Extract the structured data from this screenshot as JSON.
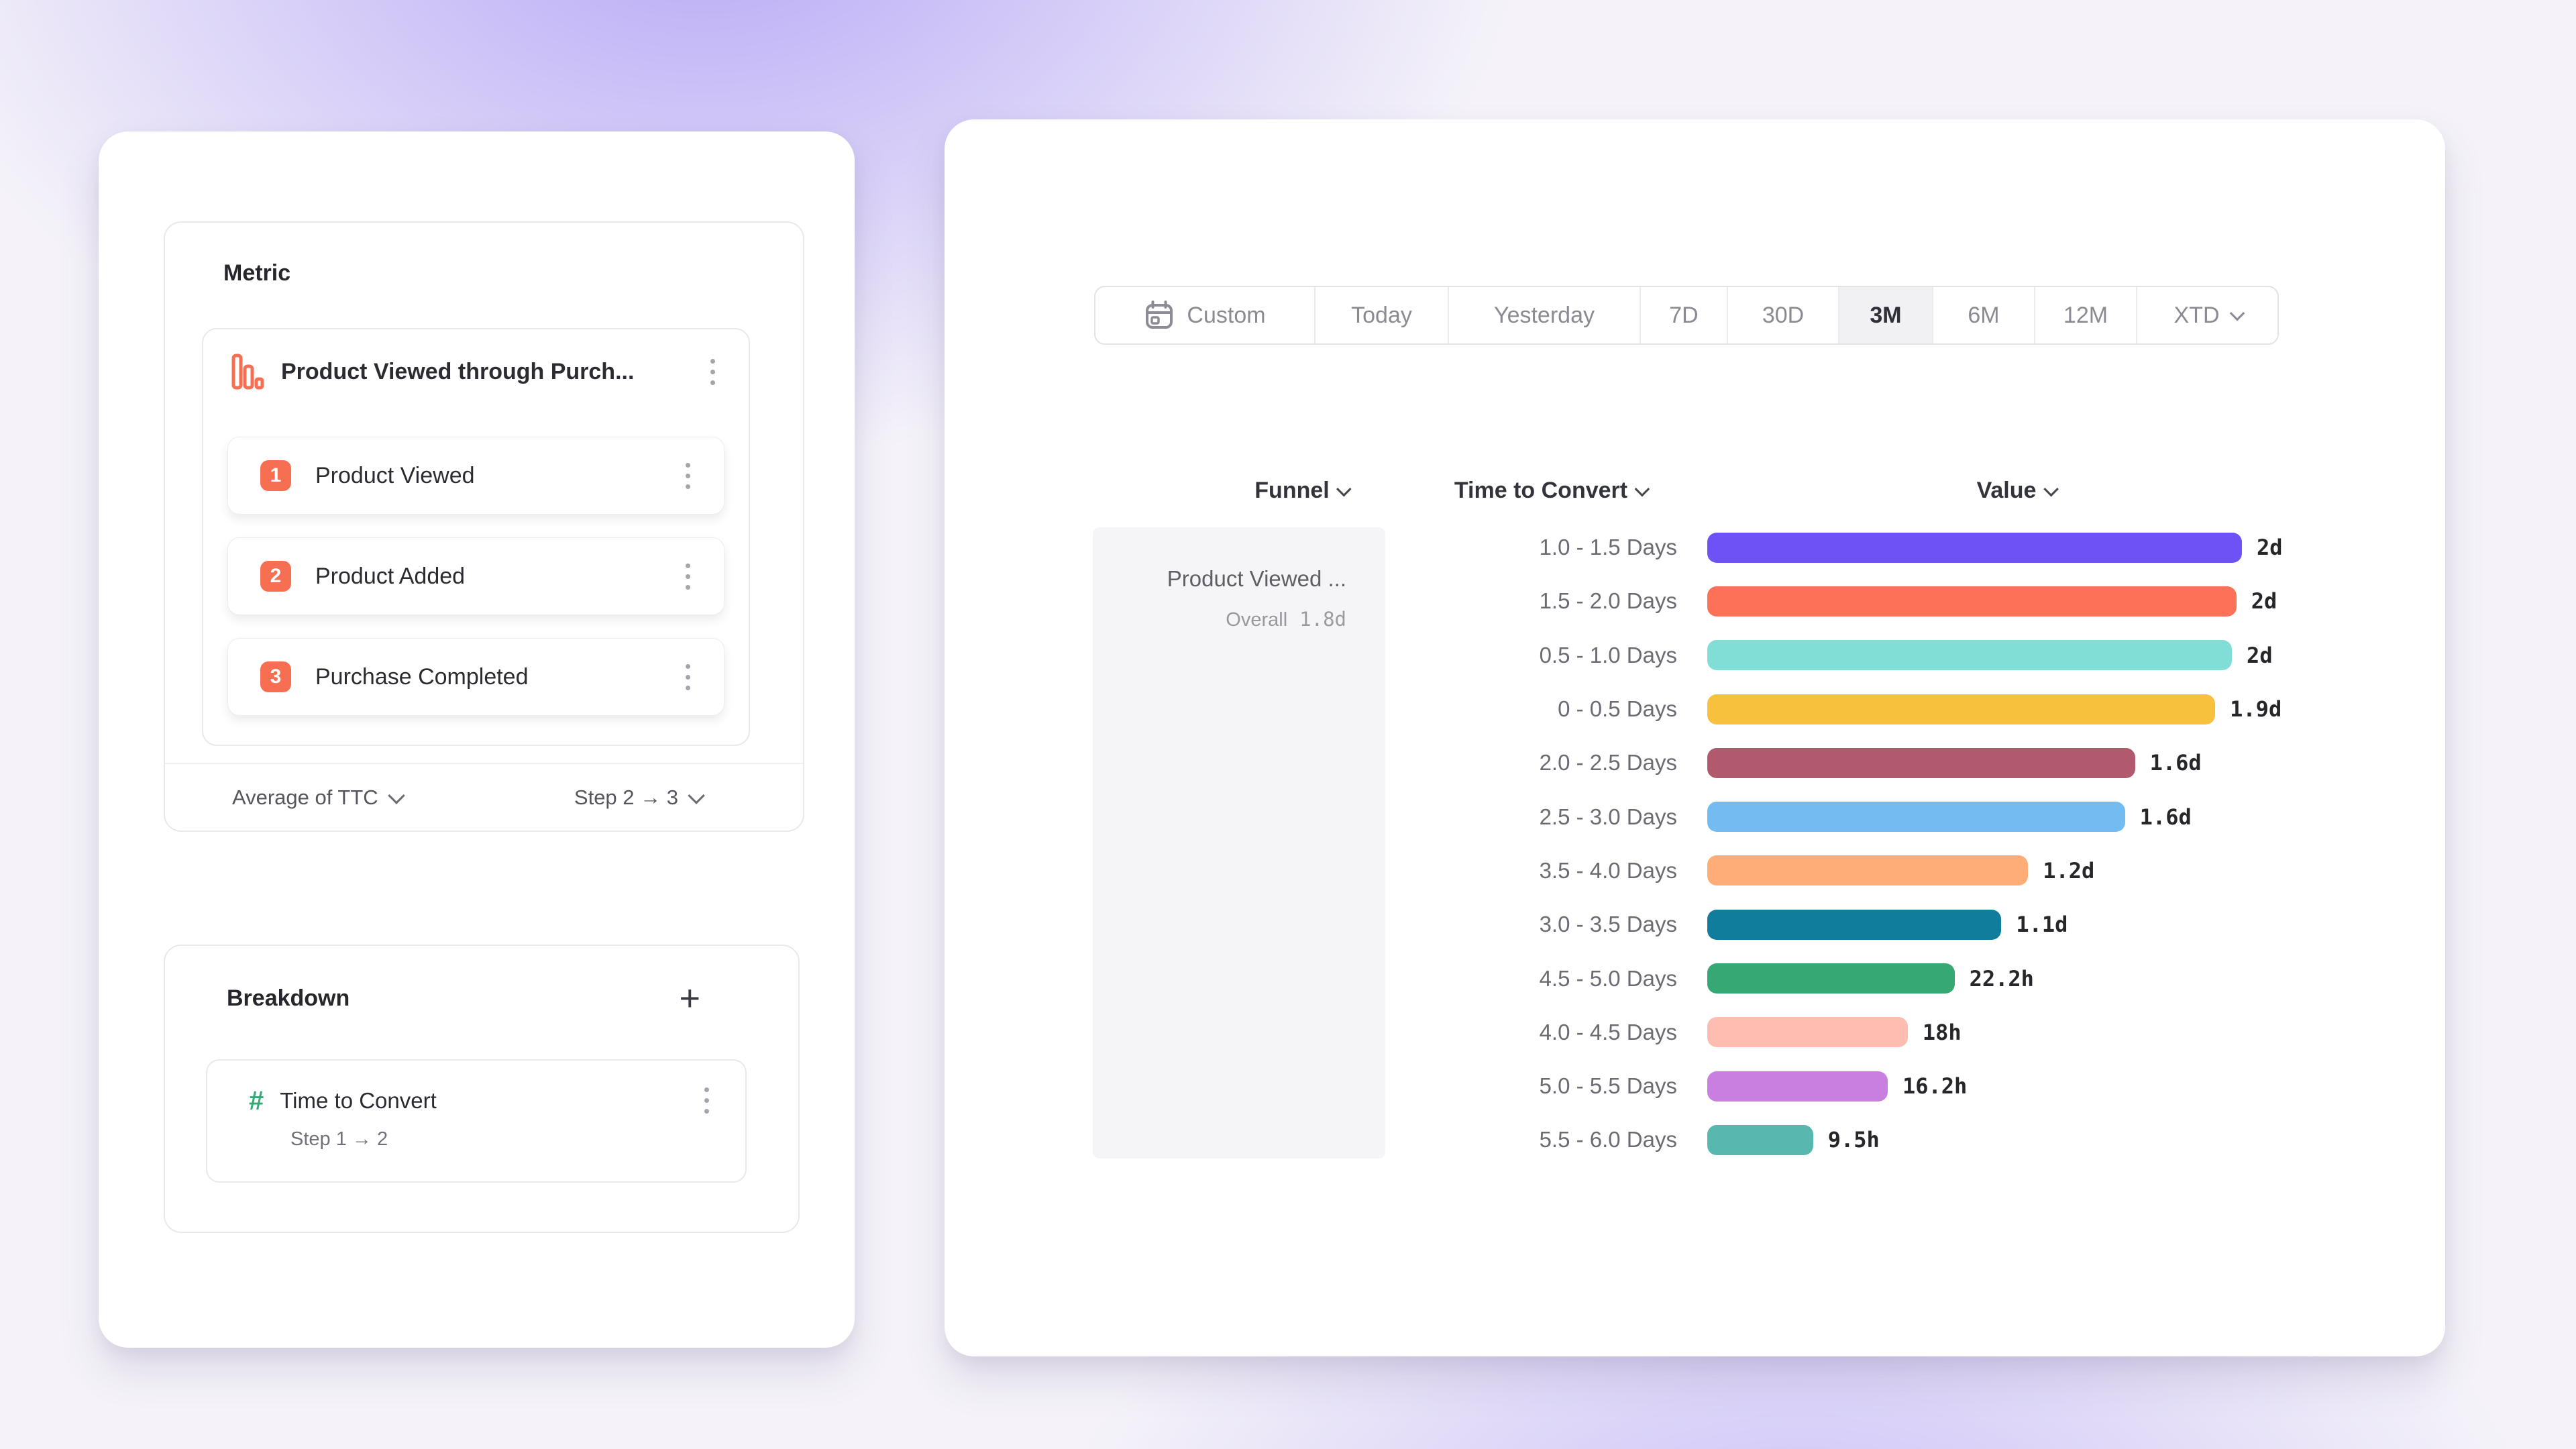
{
  "colors": {
    "accent_orange": "#F76F52",
    "accent_green": "#36A873",
    "selected_segment_bg": "#F1F1F3",
    "background_gradient_purple": "#8D76F4",
    "funnel_cell_bg": "#F5F5F7"
  },
  "icons": {
    "funnel_metric": "funnel-chart-icon",
    "menu": "kebab-menu-icon",
    "breakdown_numeric": "hash-icon",
    "add": "plus-icon",
    "custom_range": "calendar-icon",
    "dropdown": "chevron-down-icon"
  },
  "left_panel": {
    "metric": {
      "title": "Metric",
      "funnel": {
        "name": "Product Viewed through Purch...",
        "steps": [
          {
            "num": "1",
            "label": "Product Viewed"
          },
          {
            "num": "2",
            "label": "Product Added"
          },
          {
            "num": "3",
            "label": "Purchase Completed"
          }
        ],
        "footer": {
          "aggregation": "Average of TTC",
          "step_range": "Step 2 → 3"
        }
      }
    },
    "breakdown": {
      "title": "Breakdown",
      "add_label": "+",
      "item": {
        "label": "Time to Convert",
        "sub": "Step 1 → 2"
      }
    }
  },
  "right_panel": {
    "date_ranges": [
      {
        "label": "Custom",
        "icon": "calendar-icon",
        "selected": false
      },
      {
        "label": "Today",
        "selected": false
      },
      {
        "label": "Yesterday",
        "selected": false
      },
      {
        "label": "7D",
        "selected": false
      },
      {
        "label": "30D",
        "selected": false
      },
      {
        "label": "3M",
        "selected": true
      },
      {
        "label": "6M",
        "selected": false
      },
      {
        "label": "12M",
        "selected": false
      },
      {
        "label": "XTD",
        "chevron": true,
        "selected": false
      }
    ],
    "columns": [
      "Funnel",
      "Time to Convert",
      "Value"
    ],
    "funnel_cell": {
      "name": "Product Viewed ...",
      "overall_label": "Overall",
      "overall_value": "1.8d"
    }
  },
  "chart_data": {
    "type": "bar",
    "orientation": "horizontal",
    "xlabel": "Value",
    "ylabel": "Time to Convert",
    "xmax_hours": 48,
    "categories": [
      "1.0 - 1.5 Days",
      "1.5 - 2.0 Days",
      "0.5 - 1.0 Days",
      "0 - 0.5 Days",
      "2.0 - 2.5 Days",
      "2.5 - 3.0 Days",
      "3.5 - 4.0 Days",
      "3.0 - 3.5 Days",
      "4.5 - 5.0 Days",
      "4.0 - 4.5 Days",
      "5.0 - 5.5 Days",
      "5.5 - 6.0 Days"
    ],
    "values_display": [
      "2d",
      "2d",
      "2d",
      "1.9d",
      "1.6d",
      "1.6d",
      "1.2d",
      "1.1d",
      "22.2h",
      "18h",
      "16.2h",
      "9.5h"
    ],
    "values_hours": [
      48,
      47.5,
      47.1,
      45.6,
      38.4,
      37.5,
      28.8,
      26.4,
      22.2,
      18,
      16.2,
      9.5
    ],
    "colors": [
      "#6F52F6",
      "#FC7158",
      "#80DED6",
      "#F7C13E",
      "#B15A6D",
      "#72BCF2",
      "#FDAD75",
      "#117D9C",
      "#36A873",
      "#FFBDB2",
      "#C97FE0",
      "#58B8B0"
    ]
  }
}
